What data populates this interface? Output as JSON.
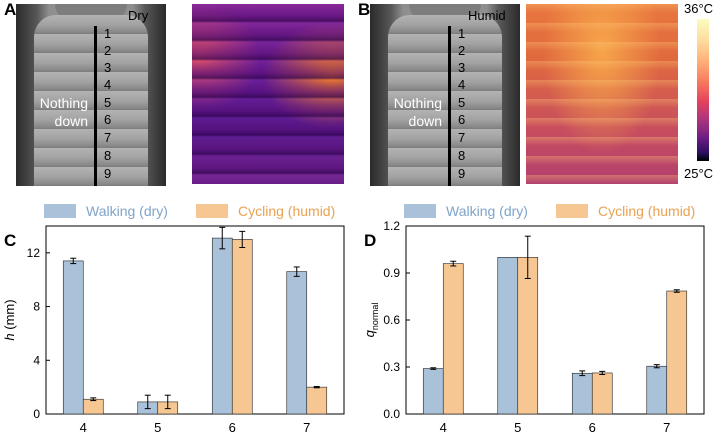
{
  "panel_a": {
    "letter": "A",
    "condition": "Dry",
    "row_numbers": [
      "1",
      "2",
      "3",
      "4",
      "5",
      "6",
      "7",
      "8",
      "9"
    ],
    "nothing": "Nothing",
    "down": "down"
  },
  "panel_b": {
    "letter": "B",
    "condition": "Humid",
    "row_numbers": [
      "1",
      "2",
      "3",
      "4",
      "5",
      "6",
      "7",
      "8",
      "9"
    ],
    "nothing": "Nothing",
    "down": "down"
  },
  "colorbar": {
    "max": "36°C",
    "min": "25°C"
  },
  "colors": {
    "walking": "#a9c1d9",
    "cycling": "#f6c792",
    "edge": "#222222"
  },
  "chart_data": [
    {
      "panel": "C",
      "type": "bar",
      "categories": [
        "4",
        "5",
        "6",
        "7"
      ],
      "series": [
        {
          "name": "Walking (dry)",
          "values": [
            11.4,
            0.9,
            13.1,
            10.6
          ],
          "errors": [
            0.2,
            0.5,
            0.8,
            0.35
          ]
        },
        {
          "name": "Cycling (humid)",
          "values": [
            1.1,
            0.9,
            13.0,
            2.0
          ],
          "errors": [
            0.1,
            0.5,
            0.6,
            0.05
          ]
        }
      ],
      "ylabel": "h (mm)",
      "ylim": [
        0,
        14
      ],
      "yticks": [
        "0",
        "4",
        "8",
        "12"
      ],
      "ytick_values": [
        0,
        4,
        8,
        12
      ]
    },
    {
      "panel": "D",
      "type": "bar",
      "categories": [
        "4",
        "5",
        "6",
        "7"
      ],
      "series": [
        {
          "name": "Walking (dry)",
          "values": [
            0.29,
            1.0,
            0.26,
            0.305
          ],
          "errors": [
            0.005,
            0.0,
            0.015,
            0.01
          ]
        },
        {
          "name": "Cycling (humid)",
          "values": [
            0.96,
            1.0,
            0.262,
            0.785
          ],
          "errors": [
            0.015,
            0.135,
            0.01,
            0.008
          ]
        }
      ],
      "ylabel": "q",
      "ylabel_sub": "normal",
      "ylim": [
        0,
        1.2
      ],
      "yticks": [
        "0.0",
        "0.3",
        "0.6",
        "0.9",
        "1.2"
      ],
      "ytick_values": [
        0,
        0.3,
        0.6,
        0.9,
        1.2
      ]
    }
  ]
}
